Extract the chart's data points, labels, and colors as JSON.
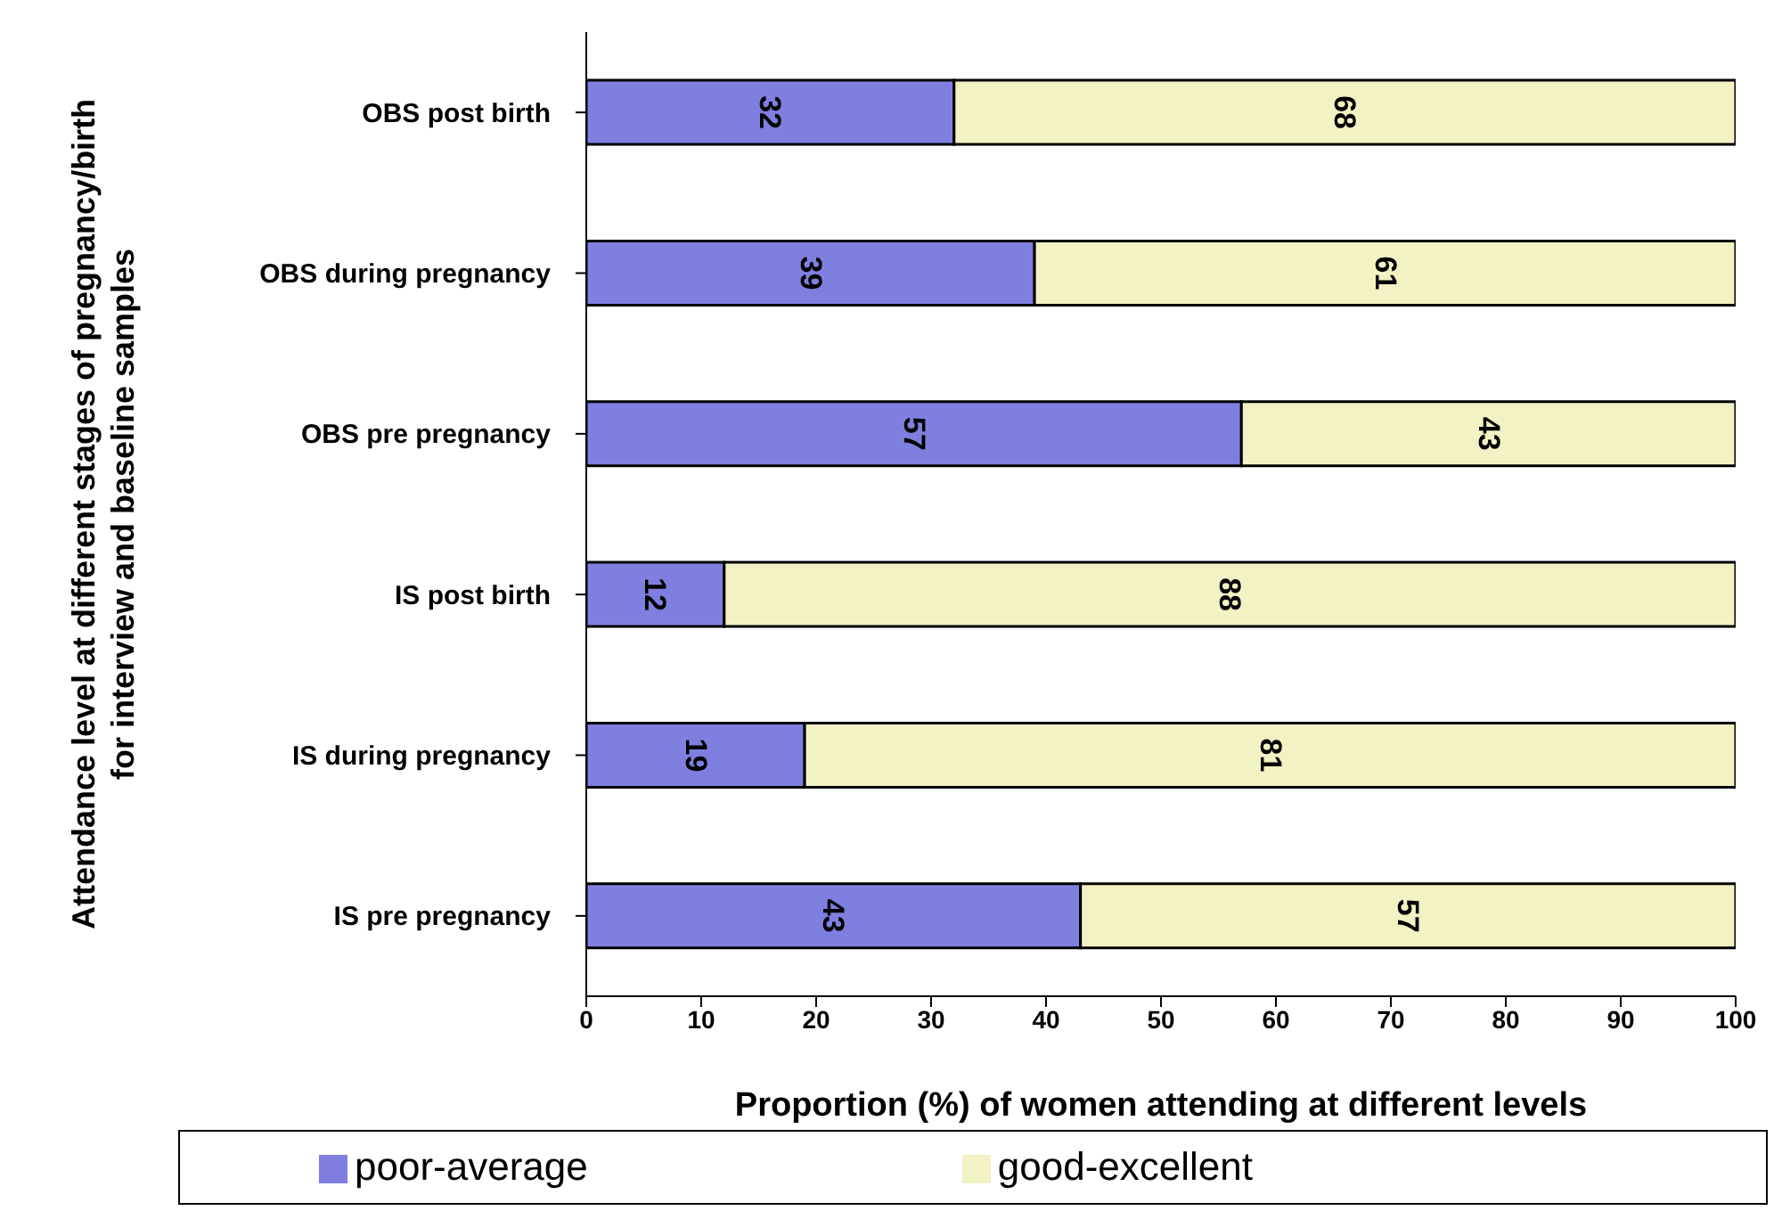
{
  "chart_data": {
    "type": "bar",
    "orientation": "horizontal",
    "stacked": true,
    "categories": [
      "OBS post birth",
      "OBS during pregnancy",
      "OBS pre pregnancy",
      "IS post birth",
      "IS during pregnancy",
      "IS pre pregnancy"
    ],
    "series": [
      {
        "name": "poor-average",
        "color": "#7f7fe0",
        "values": [
          32,
          39,
          57,
          12,
          19,
          43
        ]
      },
      {
        "name": "good-excellent",
        "color": "#f2f2c4",
        "values": [
          68,
          61,
          43,
          88,
          81,
          57
        ]
      }
    ],
    "xlabel": "Proportion (%) of women attending at different levels",
    "ylabel": "Attendance level at different stages of pregnancy/birth for interview and baseline samples",
    "xlim": [
      0,
      100
    ],
    "xticks": [
      0,
      10,
      20,
      30,
      40,
      50,
      60,
      70,
      80,
      90,
      100
    ],
    "grid": false,
    "legend": "bottom",
    "data_labels": true
  }
}
